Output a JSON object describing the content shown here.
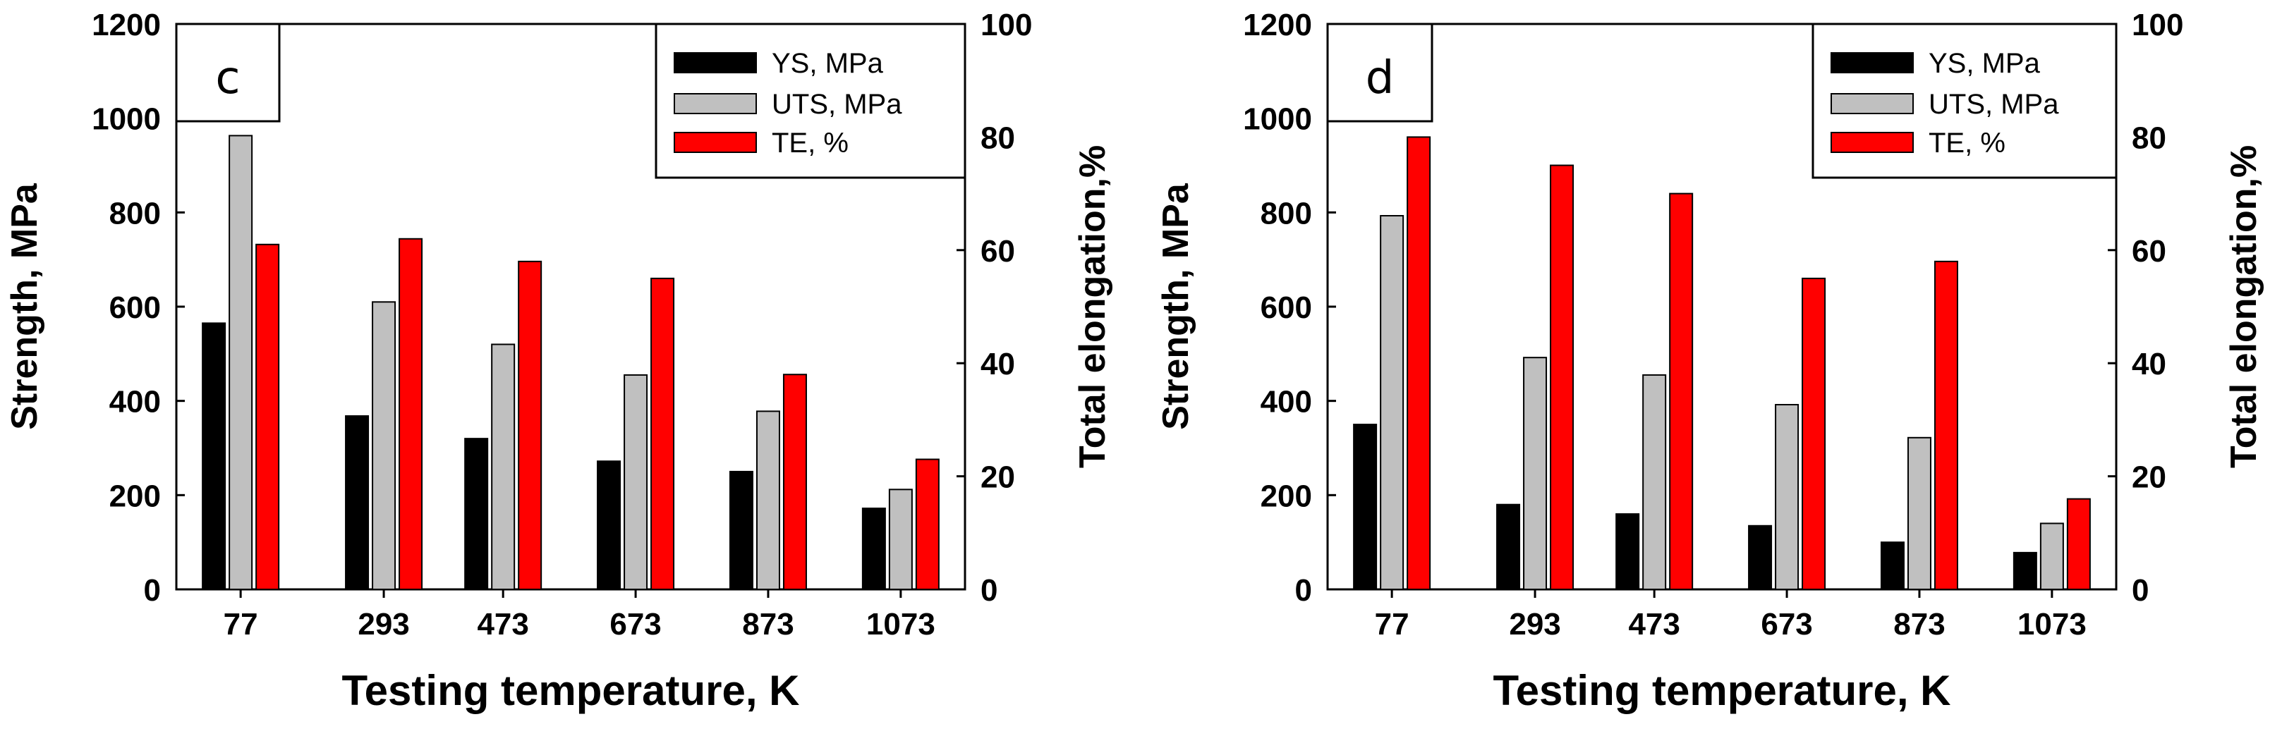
{
  "panels": [
    {
      "panel_label": "c",
      "legend": {
        "placement": "top-right",
        "items": [
          "YS, MPa",
          "UTS, MPa",
          "TE, %"
        ]
      }
    },
    {
      "panel_label": "d",
      "legend": {
        "placement": "top-right",
        "items": [
          "YS, MPa",
          "UTS, MPa",
          "TE, %"
        ]
      }
    }
  ],
  "colors": {
    "ys": "#000000",
    "uts": "#c0c0c0",
    "te": "#ff0000",
    "stroke": "#000000"
  },
  "chart_data": [
    {
      "id": "c",
      "type": "bar",
      "title": "",
      "xlabel": "Testing temperature, K",
      "ylabel": "Strength, MPa",
      "y2label": "Total elongation,%",
      "categories": [
        "77",
        "293",
        "473",
        "673",
        "873",
        "1073"
      ],
      "x": [
        77,
        293,
        473,
        673,
        873,
        1073
      ],
      "xlim": [
        -20,
        1170
      ],
      "ylim": [
        0,
        1200
      ],
      "yticks": [
        0,
        200,
        400,
        600,
        800,
        1000,
        1200
      ],
      "y2lim": [
        0,
        100
      ],
      "y2ticks": [
        0,
        20,
        40,
        60,
        80,
        100
      ],
      "grid": false,
      "series": [
        {
          "name": "YS, MPa",
          "axis": "left",
          "values": [
            565,
            368,
            320,
            272,
            250,
            172
          ]
        },
        {
          "name": "UTS, MPa",
          "axis": "left",
          "values": [
            963,
            610,
            520,
            455,
            378,
            212
          ]
        },
        {
          "name": "TE, %",
          "axis": "right",
          "values": [
            61,
            62,
            58,
            55,
            38,
            23
          ]
        }
      ]
    },
    {
      "id": "d",
      "type": "bar",
      "title": "",
      "xlabel": "Testing temperature, K",
      "ylabel": "Strength, MPa",
      "y2label": "Total elongation,%",
      "categories": [
        "77",
        "293",
        "473",
        "673",
        "873",
        "1073"
      ],
      "x": [
        77,
        293,
        473,
        673,
        873,
        1073
      ],
      "xlim": [
        -20,
        1170
      ],
      "ylim": [
        0,
        1200
      ],
      "yticks": [
        0,
        200,
        400,
        600,
        800,
        1000,
        1200
      ],
      "y2lim": [
        0,
        100
      ],
      "y2ticks": [
        0,
        20,
        40,
        60,
        80,
        100
      ],
      "grid": false,
      "series": [
        {
          "name": "YS, MPa",
          "axis": "left",
          "values": [
            350,
            180,
            160,
            135,
            100,
            78
          ]
        },
        {
          "name": "UTS, MPa",
          "axis": "left",
          "values": [
            793,
            492,
            455,
            392,
            322,
            140
          ]
        },
        {
          "name": "TE, %",
          "axis": "right",
          "values": [
            80,
            75,
            70,
            55,
            58,
            16
          ]
        }
      ]
    }
  ]
}
